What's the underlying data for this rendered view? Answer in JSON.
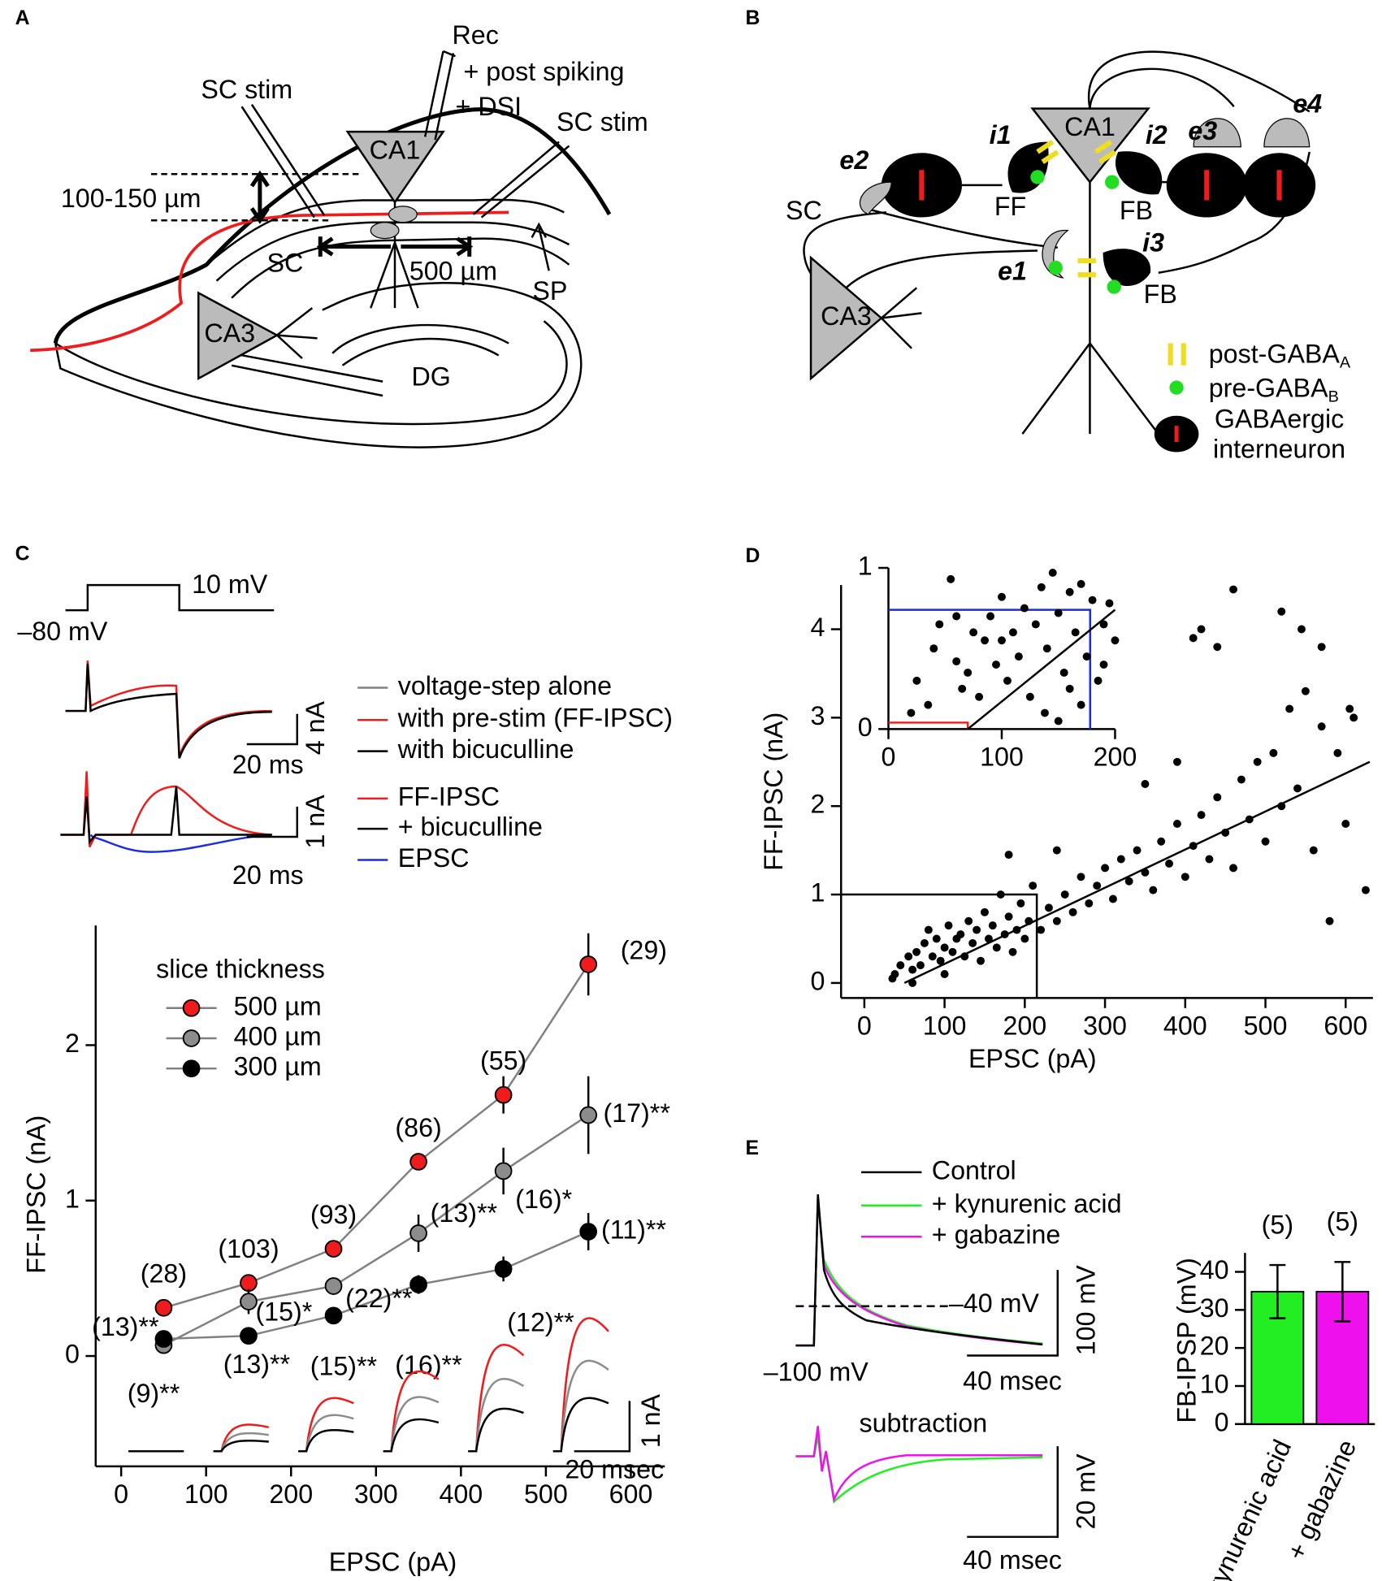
{
  "panel_labels": [
    "A",
    "B",
    "C",
    "D",
    "E"
  ],
  "diagram_a": {
    "rec": "Rec",
    "post_spiking": "+ post spiking",
    "dsi": "+ DSI",
    "sc_stim_left": "SC stim",
    "sc_stim_right": "SC stim",
    "ca1": "CA1",
    "depth": "100-150 µm",
    "sc": "SC",
    "distance": "500 µm",
    "sp": "SP",
    "ca3": "CA3",
    "dg": "DG"
  },
  "diagram_b": {
    "ca1": "CA1",
    "i1": "i1",
    "i2": "i2",
    "i3": "i3",
    "e1": "e1",
    "e2": "e2",
    "e3": "e3",
    "e4": "e4",
    "sc": "SC",
    "ff": "FF",
    "fb_top": "FB",
    "fb_bottom": "FB",
    "ca3": "CA3",
    "legend": [
      {
        "text": "post-GABA",
        "sub": "A"
      },
      {
        "text": "pre-GABA",
        "sub": "B"
      },
      {
        "text": "GABAergic",
        "text2": "interneuron"
      }
    ]
  },
  "panel_c_traces": {
    "step_top": "10 mV",
    "step_base": "–80 mV",
    "scale1_y": "4 nA",
    "scale1_x": "20 ms",
    "legend1": [
      "voltage-step alone",
      "with pre-stim (FF-IPSC)",
      "with bicuculline"
    ],
    "legend2": [
      "FF-IPSC",
      "+ bicuculline",
      "EPSC"
    ],
    "scale2_y": "1 nA",
    "scale2_x": "20 ms",
    "inset_scale_y": "1 nA",
    "inset_scale_x": "20 msec"
  },
  "panel_e_traces": {
    "legend": [
      "Control",
      "+ kynurenic acid",
      "+ gabazine"
    ],
    "threshold": "–40 mV",
    "hold": "–100 mV",
    "scale1_y": "100 mV",
    "scale1_x": "40 msec",
    "subtraction": "subtraction",
    "scale2_y": "20 mV",
    "scale2_x": "40 msec"
  },
  "chart_data": [
    {
      "type": "line",
      "xlabel": "EPSC (pA)",
      "ylabel": "FF-IPSC (nA)",
      "legend_title": "slice thickness",
      "line_color": "#808080",
      "x": [
        50,
        150,
        250,
        350,
        450,
        550
      ],
      "xlim": [
        -30,
        640
      ],
      "ylim": [
        -0.71,
        2.77
      ],
      "xticks": [
        0,
        100,
        200,
        300,
        400,
        500,
        600
      ],
      "yticks": [
        0,
        1,
        2
      ],
      "series": [
        {
          "name": "500 µm",
          "color": "#ee1c1c",
          "values": [
            0.31,
            0.47,
            0.69,
            1.25,
            1.68,
            2.52
          ],
          "errors": [
            0.02,
            0.03,
            0.03,
            0.04,
            0.12,
            0.2
          ],
          "n_labels": [
            "(28)",
            "(103)",
            "(93)",
            "(86)",
            "(55)",
            "(29)"
          ]
        },
        {
          "name": "400 µm",
          "color": "#8c8c8c",
          "values": [
            0.07,
            0.35,
            0.45,
            0.79,
            1.19,
            1.55
          ],
          "errors": [
            0.04,
            0.08,
            0.05,
            0.12,
            0.15,
            0.25
          ],
          "n_labels": [
            "(9)**",
            "(15)*",
            "(22)**",
            "(13)**",
            "(16)*",
            "(17)**"
          ]
        },
        {
          "name": "300 µm",
          "color": "#000000",
          "values": [
            0.11,
            0.13,
            0.26,
            0.46,
            0.56,
            0.8
          ],
          "errors": [
            0.02,
            0.03,
            0.03,
            0.06,
            0.08,
            0.12
          ],
          "n_labels": [
            "(13)**",
            "(13)**",
            "(15)**",
            "(16)**",
            "(12)**",
            "(11)**"
          ]
        }
      ]
    },
    {
      "type": "scatter",
      "xlabel": "EPSC (pA)",
      "ylabel": "FF-IPSC (nA)",
      "color": "#000000",
      "xlim": [
        -29,
        634
      ],
      "ylim": [
        -0.17,
        4.5
      ],
      "xticks": [
        0,
        100,
        200,
        300,
        400,
        500,
        600
      ],
      "yticks": [
        0,
        1,
        2,
        3,
        4
      ],
      "x": [
        35,
        38,
        45,
        55,
        60,
        65,
        70,
        75,
        80,
        85,
        90,
        95,
        100,
        105,
        110,
        115,
        120,
        125,
        130,
        135,
        140,
        145,
        150,
        155,
        160,
        165,
        170,
        175,
        180,
        185,
        190,
        195,
        200,
        205,
        210,
        220,
        230,
        240,
        250,
        260,
        270,
        280,
        290,
        300,
        310,
        320,
        330,
        340,
        350,
        360,
        370,
        380,
        390,
        400,
        410,
        420,
        430,
        440,
        450,
        460,
        470,
        480,
        490,
        500,
        510,
        520,
        530,
        540,
        550,
        560,
        570,
        580,
        590,
        600,
        610,
        625,
        410,
        420,
        440,
        460,
        520,
        545,
        570,
        605,
        390,
        350,
        180,
        240,
        60,
        100
      ],
      "y": [
        0.05,
        0.1,
        0.2,
        0.3,
        0.15,
        0.35,
        0.2,
        0.45,
        0.6,
        0.3,
        0.5,
        0.25,
        0.4,
        0.65,
        0.35,
        0.5,
        0.55,
        0.3,
        0.7,
        0.45,
        0.6,
        0.25,
        0.8,
        0.5,
        0.65,
        0.4,
        1.0,
        0.55,
        0.75,
        0.35,
        0.6,
        0.9,
        0.5,
        0.7,
        1.1,
        0.6,
        0.85,
        0.7,
        1.0,
        0.8,
        1.2,
        0.9,
        1.1,
        1.3,
        0.95,
        1.4,
        1.15,
        1.5,
        1.25,
        1.05,
        1.6,
        1.35,
        1.8,
        1.2,
        1.55,
        1.9,
        1.4,
        2.1,
        1.7,
        1.3,
        2.3,
        1.85,
        2.5,
        1.6,
        2.6,
        2.0,
        3.1,
        2.2,
        3.3,
        1.5,
        2.9,
        0.7,
        2.6,
        1.8,
        3.0,
        1.05,
        3.9,
        4.0,
        3.8,
        4.45,
        4.2,
        4.0,
        3.8,
        3.1,
        2.5,
        2.25,
        1.45,
        1.5,
        0.0,
        0.1
      ],
      "fit_line": {
        "x": [
          50,
          630
        ],
        "y": [
          0,
          2.5
        ]
      },
      "box": {
        "x": 215,
        "y": 1
      },
      "inset": {
        "xlim": [
          0,
          200
        ],
        "ylim": [
          0,
          1
        ],
        "xticks": [
          0,
          100,
          200
        ],
        "yticks": [
          0,
          1
        ],
        "x": [
          20,
          25,
          35,
          40,
          45,
          55,
          60,
          65,
          70,
          75,
          80,
          85,
          90,
          95,
          100,
          105,
          110,
          115,
          120,
          125,
          130,
          135,
          140,
          145,
          150,
          155,
          160,
          165,
          170,
          175,
          180,
          185,
          190,
          195,
          200,
          138,
          150,
          160,
          170,
          190,
          100,
          60
        ],
        "y": [
          0.1,
          0.3,
          0.15,
          0.5,
          0.65,
          0.93,
          0.42,
          0.25,
          0.35,
          0.6,
          0.2,
          0.55,
          0.7,
          0.4,
          0.82,
          0.3,
          0.6,
          0.45,
          0.75,
          0.2,
          0.65,
          0.88,
          0.5,
          0.97,
          0.72,
          0.35,
          0.85,
          0.6,
          0.9,
          0.45,
          0.8,
          0.3,
          0.65,
          0.78,
          0.55,
          0.1,
          0.05,
          0.25,
          0.15,
          0.4,
          0.55,
          0.7
        ],
        "fit_line": {
          "x": [
            70,
            200
          ],
          "y": [
            0,
            0.74
          ]
        },
        "red_box": {
          "x": 70,
          "y": 0.04,
          "color": "#ee1c1c"
        },
        "blue_box": {
          "x": 178,
          "y": 0.74,
          "color": "#1c2ce0"
        }
      }
    },
    {
      "type": "bar",
      "ylabel": "FB-IPSP (mV)",
      "categories": [
        "+ kynurenic acid",
        "+ gabazine"
      ],
      "values": [
        34.8,
        34.8
      ],
      "errors": [
        7,
        7.8
      ],
      "colors": [
        "#22ee22",
        "#ee11ee"
      ],
      "n_labels": [
        "(5)",
        "(5)"
      ],
      "ylim": [
        0,
        45
      ],
      "yticks": [
        0,
        10,
        20,
        30,
        40
      ]
    }
  ]
}
